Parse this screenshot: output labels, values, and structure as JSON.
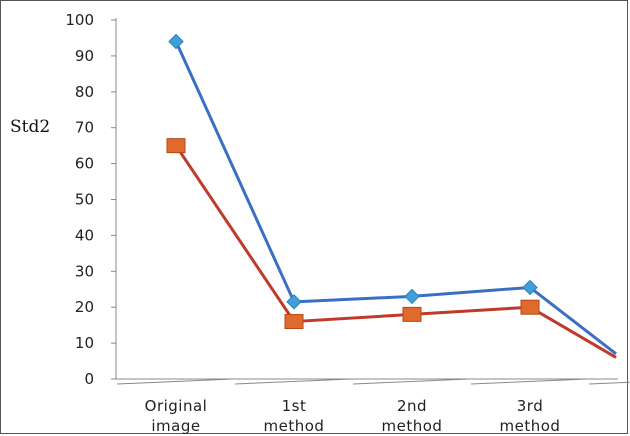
{
  "chart_data": {
    "type": "line",
    "title": "",
    "xlabel": "",
    "ylabel": "Std2",
    "ylim": [
      0,
      100
    ],
    "yticks": [
      0,
      10,
      20,
      30,
      40,
      50,
      60,
      70,
      80,
      90,
      100
    ],
    "categories": [
      [
        "Original",
        "image"
      ],
      [
        "1st",
        "method"
      ],
      [
        "2nd",
        "method"
      ],
      [
        "3rd",
        "method"
      ],
      [
        "",
        ""
      ]
    ],
    "grid": false,
    "legend": "none",
    "series": [
      {
        "color": "#3a6fc4",
        "marker": "diamond",
        "marker_color": "#3f9fd8",
        "values": [
          94,
          21.5,
          23,
          25.5,
          7
        ]
      },
      {
        "color": "#c0392b",
        "marker": "square",
        "marker_color": "#e06a2c",
        "values": [
          65,
          16,
          18,
          20,
          6
        ]
      }
    ]
  }
}
